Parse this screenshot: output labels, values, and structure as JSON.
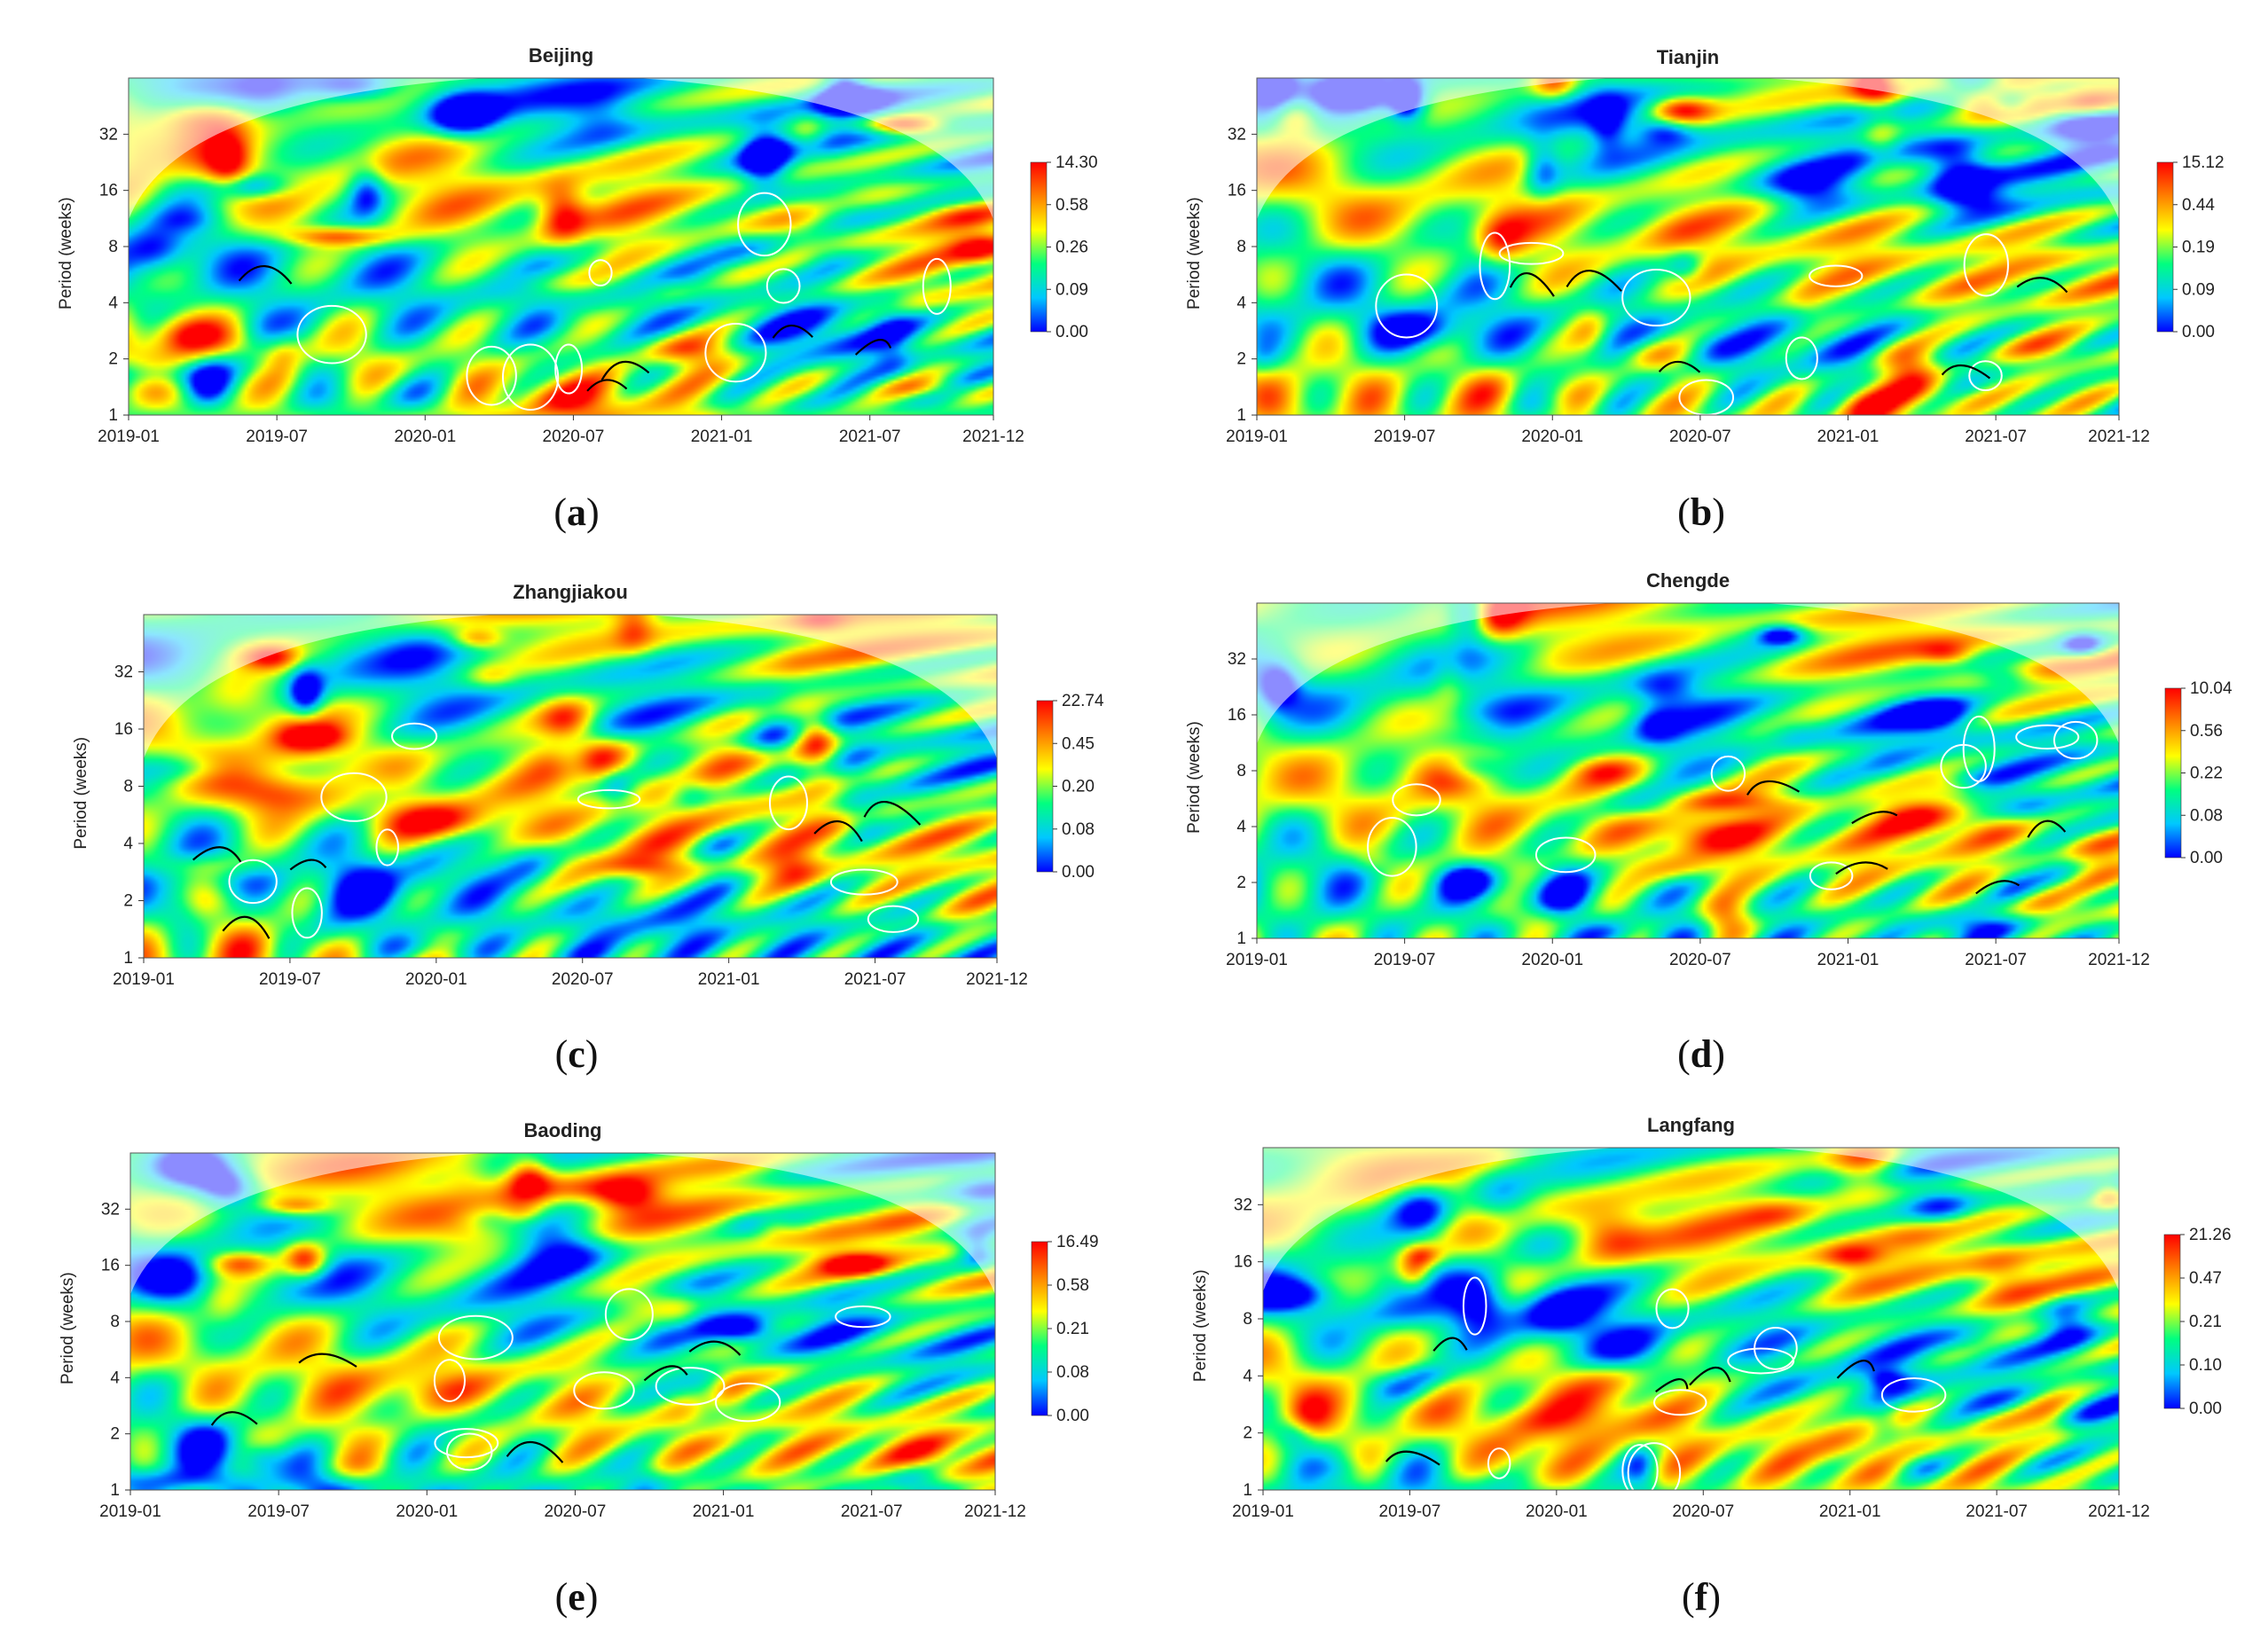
{
  "chart_data": [
    {
      "type": "heatmap",
      "title": "Beijing",
      "ylabel": "Period (weeks)",
      "x_ticks": [
        "2019-01",
        "2019-07",
        "2020-01",
        "2020-07",
        "2021-01",
        "2021-07",
        "2021-12"
      ],
      "y_ticks": [
        "1",
        "2",
        "4",
        "8",
        "16",
        "32"
      ],
      "xlim": [
        "2019-01",
        "2021-12"
      ],
      "ylim": [
        1,
        64
      ],
      "y_scale": "log2",
      "colorbar_ticks": [
        "14.30",
        "0.58",
        "0.26",
        "0.09",
        "0.00"
      ],
      "colormap": [
        "#0000ff",
        "#00c8ff",
        "#00ff80",
        "#ffff00",
        "#ff8000",
        "#ff0000"
      ],
      "caption": "a"
    },
    {
      "type": "heatmap",
      "title": "Tianjin",
      "ylabel": "Period (weeks)",
      "x_ticks": [
        "2019-01",
        "2019-07",
        "2020-01",
        "2020-07",
        "2021-01",
        "2021-07",
        "2021-12"
      ],
      "y_ticks": [
        "1",
        "2",
        "4",
        "8",
        "16",
        "32"
      ],
      "xlim": [
        "2019-01",
        "2021-12"
      ],
      "ylim": [
        1,
        64
      ],
      "y_scale": "log2",
      "colorbar_ticks": [
        "15.12",
        "0.44",
        "0.19",
        "0.09",
        "0.00"
      ],
      "colormap": [
        "#0000ff",
        "#00c8ff",
        "#00ff80",
        "#ffff00",
        "#ff8000",
        "#ff0000"
      ],
      "caption": "b"
    },
    {
      "type": "heatmap",
      "title": "Zhangjiakou",
      "ylabel": "Period (weeks)",
      "x_ticks": [
        "2019-01",
        "2019-07",
        "2020-01",
        "2020-07",
        "2021-01",
        "2021-07",
        "2021-12"
      ],
      "y_ticks": [
        "1",
        "2",
        "4",
        "8",
        "16",
        "32"
      ],
      "xlim": [
        "2019-01",
        "2021-12"
      ],
      "ylim": [
        1,
        64
      ],
      "y_scale": "log2",
      "colorbar_ticks": [
        "22.74",
        "0.45",
        "0.20",
        "0.08",
        "0.00"
      ],
      "colormap": [
        "#0000ff",
        "#00c8ff",
        "#00ff80",
        "#ffff00",
        "#ff8000",
        "#ff0000"
      ],
      "caption": "c"
    },
    {
      "type": "heatmap",
      "title": "Chengde",
      "ylabel": "Period (weeks)",
      "x_ticks": [
        "2019-01",
        "2019-07",
        "2020-01",
        "2020-07",
        "2021-01",
        "2021-07",
        "2021-12"
      ],
      "y_ticks": [
        "1",
        "2",
        "4",
        "8",
        "16",
        "32"
      ],
      "xlim": [
        "2019-01",
        "2021-12"
      ],
      "ylim": [
        1,
        64
      ],
      "y_scale": "log2",
      "colorbar_ticks": [
        "10.04",
        "0.56",
        "0.22",
        "0.08",
        "0.00"
      ],
      "colormap": [
        "#0000ff",
        "#00c8ff",
        "#00ff80",
        "#ffff00",
        "#ff8000",
        "#ff0000"
      ],
      "caption": "d"
    },
    {
      "type": "heatmap",
      "title": "Baoding",
      "ylabel": "Period (weeks)",
      "x_ticks": [
        "2019-01",
        "2019-07",
        "2020-01",
        "2020-07",
        "2021-01",
        "2021-07",
        "2021-12"
      ],
      "y_ticks": [
        "1",
        "2",
        "4",
        "8",
        "16",
        "32"
      ],
      "xlim": [
        "2019-01",
        "2021-12"
      ],
      "ylim": [
        1,
        64
      ],
      "y_scale": "log2",
      "colorbar_ticks": [
        "16.49",
        "0.58",
        "0.21",
        "0.08",
        "0.00"
      ],
      "colormap": [
        "#0000ff",
        "#00c8ff",
        "#00ff80",
        "#ffff00",
        "#ff8000",
        "#ff0000"
      ],
      "caption": "e"
    },
    {
      "type": "heatmap",
      "title": "Langfang",
      "ylabel": "Period (weeks)",
      "x_ticks": [
        "2019-01",
        "2019-07",
        "2020-01",
        "2020-07",
        "2021-01",
        "2021-07",
        "2021-12"
      ],
      "y_ticks": [
        "1",
        "2",
        "4",
        "8",
        "16",
        "32"
      ],
      "xlim": [
        "2019-01",
        "2021-12"
      ],
      "ylim": [
        1,
        64
      ],
      "y_scale": "log2",
      "colorbar_ticks": [
        "21.26",
        "0.47",
        "0.21",
        "0.10",
        "0.00"
      ],
      "colormap": [
        "#0000ff",
        "#00c8ff",
        "#00ff80",
        "#ffff00",
        "#ff8000",
        "#ff0000"
      ],
      "caption": "f"
    }
  ]
}
